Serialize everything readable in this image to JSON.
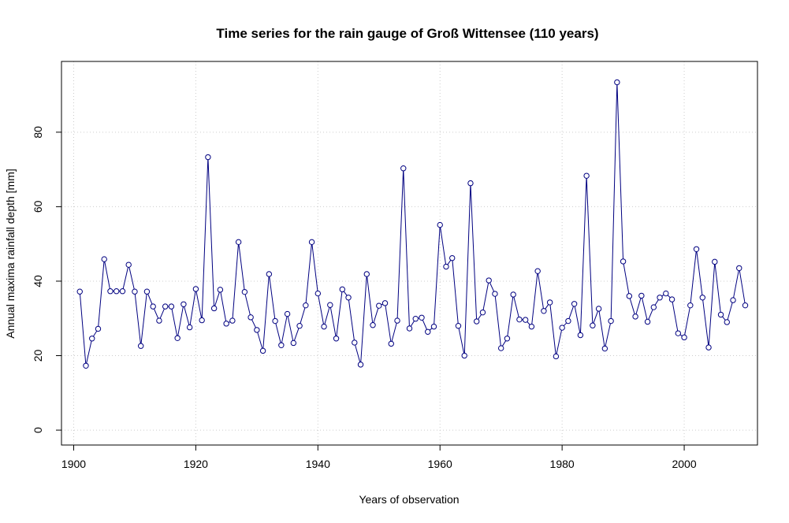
{
  "chart_data": {
    "type": "line",
    "title": "Time series for the rain gauge of Groß Wittensee (110 years)",
    "xlabel": "Years of observation",
    "ylabel": "Annual maxima rainfall depth [mm]",
    "xlim": [
      1898,
      2012
    ],
    "ylim": [
      -4,
      99
    ],
    "x_ticks": [
      1900,
      1920,
      1940,
      1960,
      1980,
      2000
    ],
    "y_ticks": [
      0,
      20,
      40,
      60,
      80
    ],
    "grid": true,
    "line_color": "#000080",
    "marker_color": "#000080",
    "grid_color": "#cccccc",
    "series": [
      {
        "x": [
          1901,
          1902,
          1903,
          1904,
          1905,
          1906,
          1907,
          1908,
          1909,
          1910,
          1911,
          1912,
          1913,
          1914,
          1915,
          1916,
          1917,
          1918,
          1919,
          1920,
          1921,
          1922,
          1923,
          1924,
          1925,
          1926,
          1927,
          1928,
          1929,
          1930,
          1931,
          1932,
          1933,
          1934,
          1935,
          1936,
          1937,
          1938,
          1939,
          1940,
          1941,
          1942,
          1943,
          1944,
          1945,
          1946,
          1947,
          1948,
          1949,
          1950,
          1951,
          1952,
          1953,
          1954,
          1955,
          1956,
          1957,
          1958,
          1959,
          1960,
          1961,
          1962,
          1963,
          1964,
          1965,
          1966,
          1967,
          1968,
          1969,
          1970,
          1971,
          1972,
          1973,
          1974,
          1975,
          1976,
          1977,
          1978,
          1979,
          1980,
          1981,
          1982,
          1983,
          1984,
          1985,
          1986,
          1987,
          1988,
          1989,
          1990,
          1991,
          1992,
          1993,
          1994,
          1995,
          1996,
          1997,
          1998,
          1999,
          2000,
          2001,
          2002,
          2003,
          2004,
          2005,
          2006,
          2007,
          2008,
          2009,
          2010
        ],
        "values": [
          37.2,
          17.3,
          24.6,
          27.2,
          45.9,
          37.3,
          37.3,
          37.3,
          44.4,
          37.2,
          22.6,
          37.2,
          33.2,
          29.4,
          33.2,
          33.2,
          24.7,
          33.8,
          27.6,
          37.9,
          29.5,
          73.3,
          32.7,
          37.7,
          28.6,
          29.4,
          50.5,
          37.1,
          30.3,
          26.9,
          21.3,
          41.9,
          29.3,
          22.8,
          31.2,
          23.4,
          28.0,
          33.5,
          50.5,
          36.7,
          27.8,
          33.6,
          24.6,
          37.8,
          35.6,
          23.5,
          17.6,
          41.9,
          28.2,
          33.4,
          34.1,
          23.2,
          29.4,
          70.3,
          27.3,
          29.9,
          30.2,
          26.4,
          27.8,
          55.1,
          43.9,
          46.2,
          28.0,
          20.0,
          66.3,
          29.2,
          31.6,
          40.2,
          36.6,
          22.0,
          24.6,
          36.4,
          29.7,
          29.6,
          27.8,
          42.7,
          32.0,
          34.3,
          19.8,
          27.5,
          29.3,
          33.9,
          25.5,
          68.3,
          28.1,
          32.6,
          21.9,
          29.3,
          93.4,
          45.3,
          36.0,
          30.5,
          36.1,
          29.1,
          33.0,
          35.6,
          36.7,
          35.1,
          26.0,
          24.9,
          33.5,
          48.6,
          35.6,
          22.2,
          45.2,
          31.0,
          29.0,
          34.9,
          43.5,
          33.5
        ]
      }
    ]
  }
}
